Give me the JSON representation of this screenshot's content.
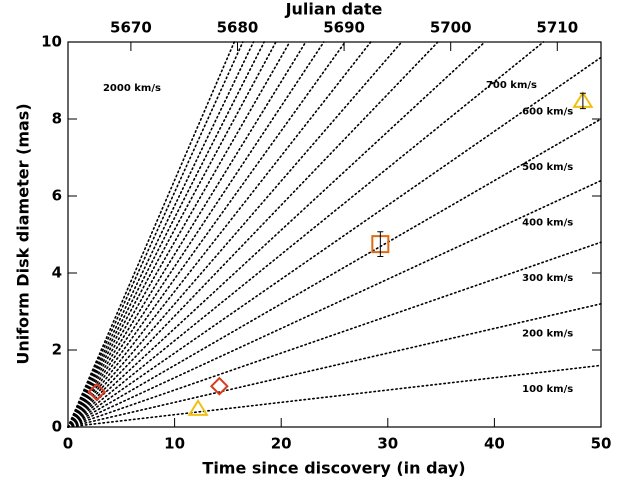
{
  "chart_data": {
    "type": "scatter",
    "xlabel": "Time since discovery (in day)",
    "ylabel": "Uniform Disk diameter (mas)",
    "x2label": "Julian date",
    "xlim": [
      0,
      50
    ],
    "xticks": [
      0,
      10,
      20,
      30,
      40,
      50
    ],
    "ylim": [
      0,
      10
    ],
    "yticks": [
      0,
      2,
      4,
      6,
      8,
      10
    ],
    "x2lim": [
      5664.1,
      5714.1
    ],
    "x2ticks": [
      5670,
      5680,
      5690,
      5700,
      5710
    ],
    "lines": [
      {
        "label": "100 km/s",
        "x": [
          0,
          50
        ],
        "y": [
          0,
          1.6
        ]
      },
      {
        "label": "200 km/s",
        "x": [
          0,
          50
        ],
        "y": [
          0,
          3.2
        ]
      },
      {
        "label": "300 km/s",
        "x": [
          0,
          50
        ],
        "y": [
          0,
          4.8
        ]
      },
      {
        "label": "400 km/s",
        "x": [
          0,
          50
        ],
        "y": [
          0,
          6.4
        ]
      },
      {
        "label": "500 km/s",
        "x": [
          0,
          50
        ],
        "y": [
          0,
          8.0
        ]
      },
      {
        "label": "600 km/s",
        "x": [
          0,
          50
        ],
        "y": [
          0,
          9.6
        ]
      },
      {
        "label": "700 km/s",
        "x": [
          0,
          44.6
        ],
        "y": [
          0,
          10
        ]
      },
      {
        "label": null,
        "x": [
          0,
          39.1
        ],
        "y": [
          0,
          10
        ]
      },
      {
        "label": null,
        "x": [
          0,
          34.7
        ],
        "y": [
          0,
          10
        ]
      },
      {
        "label": null,
        "x": [
          0,
          31.3
        ],
        "y": [
          0,
          10
        ]
      },
      {
        "label": null,
        "x": [
          0,
          28.4
        ],
        "y": [
          0,
          10
        ]
      },
      {
        "label": null,
        "x": [
          0,
          26.0
        ],
        "y": [
          0,
          10
        ]
      },
      {
        "label": null,
        "x": [
          0,
          24.0
        ],
        "y": [
          0,
          10
        ]
      },
      {
        "label": null,
        "x": [
          0,
          22.3
        ],
        "y": [
          0,
          10
        ]
      },
      {
        "label": null,
        "x": [
          0,
          20.8
        ],
        "y": [
          0,
          10
        ]
      },
      {
        "label": null,
        "x": [
          0,
          19.5
        ],
        "y": [
          0,
          10
        ]
      },
      {
        "label": null,
        "x": [
          0,
          18.4
        ],
        "y": [
          0,
          10
        ]
      },
      {
        "label": null,
        "x": [
          0,
          17.4
        ],
        "y": [
          0,
          10
        ]
      },
      {
        "label": null,
        "x": [
          0,
          16.4
        ],
        "y": [
          0,
          10
        ]
      },
      {
        "label": "2000 km/s",
        "x": [
          0,
          15.6
        ],
        "y": [
          0,
          10
        ]
      }
    ],
    "series": [
      {
        "marker": "diamond",
        "color": "#d83a20",
        "x": [
          2.7,
          14.2
        ],
        "y": [
          0.91,
          1.06
        ]
      },
      {
        "marker": "triangle",
        "color": "#f0c010",
        "x": [
          12.2,
          48.3
        ],
        "y": [
          0.47,
          8.47
        ],
        "errors": [
          null,
          0.2
        ]
      },
      {
        "marker": "square",
        "color": "#e06a10",
        "x": [
          29.3
        ],
        "y": [
          4.75
        ],
        "errors": [
          0.32
        ]
      }
    ]
  }
}
